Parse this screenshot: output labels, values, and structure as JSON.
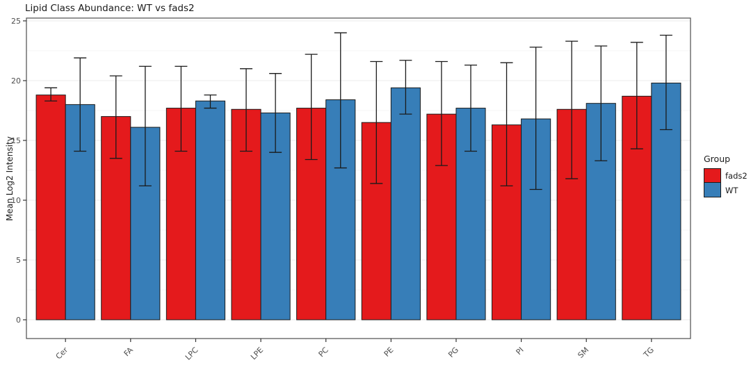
{
  "title": "Lipid Class Abundance: WT vs fads2",
  "chart_data": {
    "type": "bar",
    "title": "Lipid Class Abundance: WT vs fads2",
    "xlabel": "",
    "ylabel": "Mean Log2 Intensity",
    "ylim": [
      0,
      25
    ],
    "yticks": [
      0,
      5,
      10,
      15,
      20,
      25
    ],
    "yticks_minor": [
      2.5,
      7.5,
      12.5,
      17.5,
      22.5
    ],
    "grid": true,
    "legend_position": "right",
    "legend": {
      "title": "Group"
    },
    "categories": [
      "Cer",
      "FA",
      "LPC",
      "LPE",
      "PC",
      "PE",
      "PG",
      "PI",
      "SM",
      "TG"
    ],
    "series": [
      {
        "name": "fads2",
        "color": "#E41A1C",
        "values": [
          18.8,
          17.0,
          17.7,
          17.6,
          17.7,
          16.5,
          17.2,
          16.3,
          17.6,
          18.7
        ],
        "error_low": [
          18.3,
          13.5,
          14.1,
          14.1,
          13.4,
          11.4,
          12.9,
          11.2,
          11.8,
          14.3
        ],
        "error_high": [
          19.4,
          20.4,
          21.2,
          21.0,
          22.2,
          21.6,
          21.6,
          21.5,
          23.3,
          23.2
        ]
      },
      {
        "name": "WT",
        "color": "#377EB8",
        "values": [
          18.0,
          16.1,
          18.3,
          17.3,
          18.4,
          19.4,
          17.7,
          16.8,
          18.1,
          19.8
        ],
        "error_low": [
          14.1,
          11.2,
          17.7,
          14.0,
          12.7,
          17.2,
          14.1,
          10.9,
          13.3,
          15.9
        ],
        "error_high": [
          21.9,
          21.2,
          18.8,
          20.6,
          24.0,
          21.7,
          21.3,
          22.8,
          22.9,
          23.8
        ]
      }
    ]
  },
  "style_colors": {
    "bar_outline": "#1a1a1a",
    "panel_border": "#4d4d4d",
    "grid_major": "#ebebeb",
    "grid_minor": "#f5f5f5",
    "tick_text": "#4d4d4d",
    "error_bar": "#1a1a1a"
  }
}
